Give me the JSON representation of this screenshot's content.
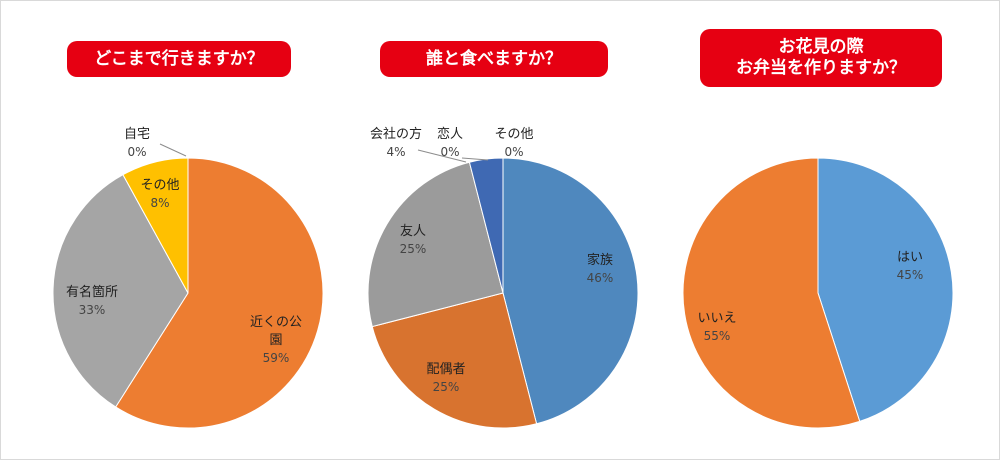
{
  "chart_data": [
    {
      "type": "pie",
      "title": "どこまで行きますか？",
      "slices": [
        {
          "label": "近くの公園",
          "value": 59,
          "display": "59%",
          "color": "#ed7d31"
        },
        {
          "label": "有名箇所",
          "value": 33,
          "display": "33%",
          "color": "#a5a5a5"
        },
        {
          "label": "その他",
          "value": 8,
          "display": "8%",
          "color": "#ffc000"
        },
        {
          "label": "自宅",
          "value": 0,
          "display": "0%",
          "color": "#5b9bd5"
        }
      ]
    },
    {
      "type": "pie",
      "title": "誰と食べますか？",
      "slices": [
        {
          "label": "家族",
          "value": 46,
          "display": "46%",
          "color": "#4f88be"
        },
        {
          "label": "配偶者",
          "value": 25,
          "display": "25%",
          "color": "#d8732f"
        },
        {
          "label": "友人",
          "value": 25,
          "display": "25%",
          "color": "#9b9b9b"
        },
        {
          "label": "会社の方",
          "value": 4,
          "display": "4%",
          "color": "#3f69b3"
        },
        {
          "label": "恋人",
          "value": 0,
          "display": "0%",
          "color": "#70ad47"
        },
        {
          "label": "その他",
          "value": 0,
          "display": "0%",
          "color": "#264478"
        }
      ]
    },
    {
      "type": "pie",
      "title_lines": [
        "お花見の際",
        "お弁当を作りますか？"
      ],
      "slices": [
        {
          "label": "はい",
          "value": 45,
          "display": "45%",
          "color": "#5b9bd5"
        },
        {
          "label": "いいえ",
          "value": 55,
          "display": "55%",
          "color": "#ed7d31"
        }
      ]
    }
  ]
}
